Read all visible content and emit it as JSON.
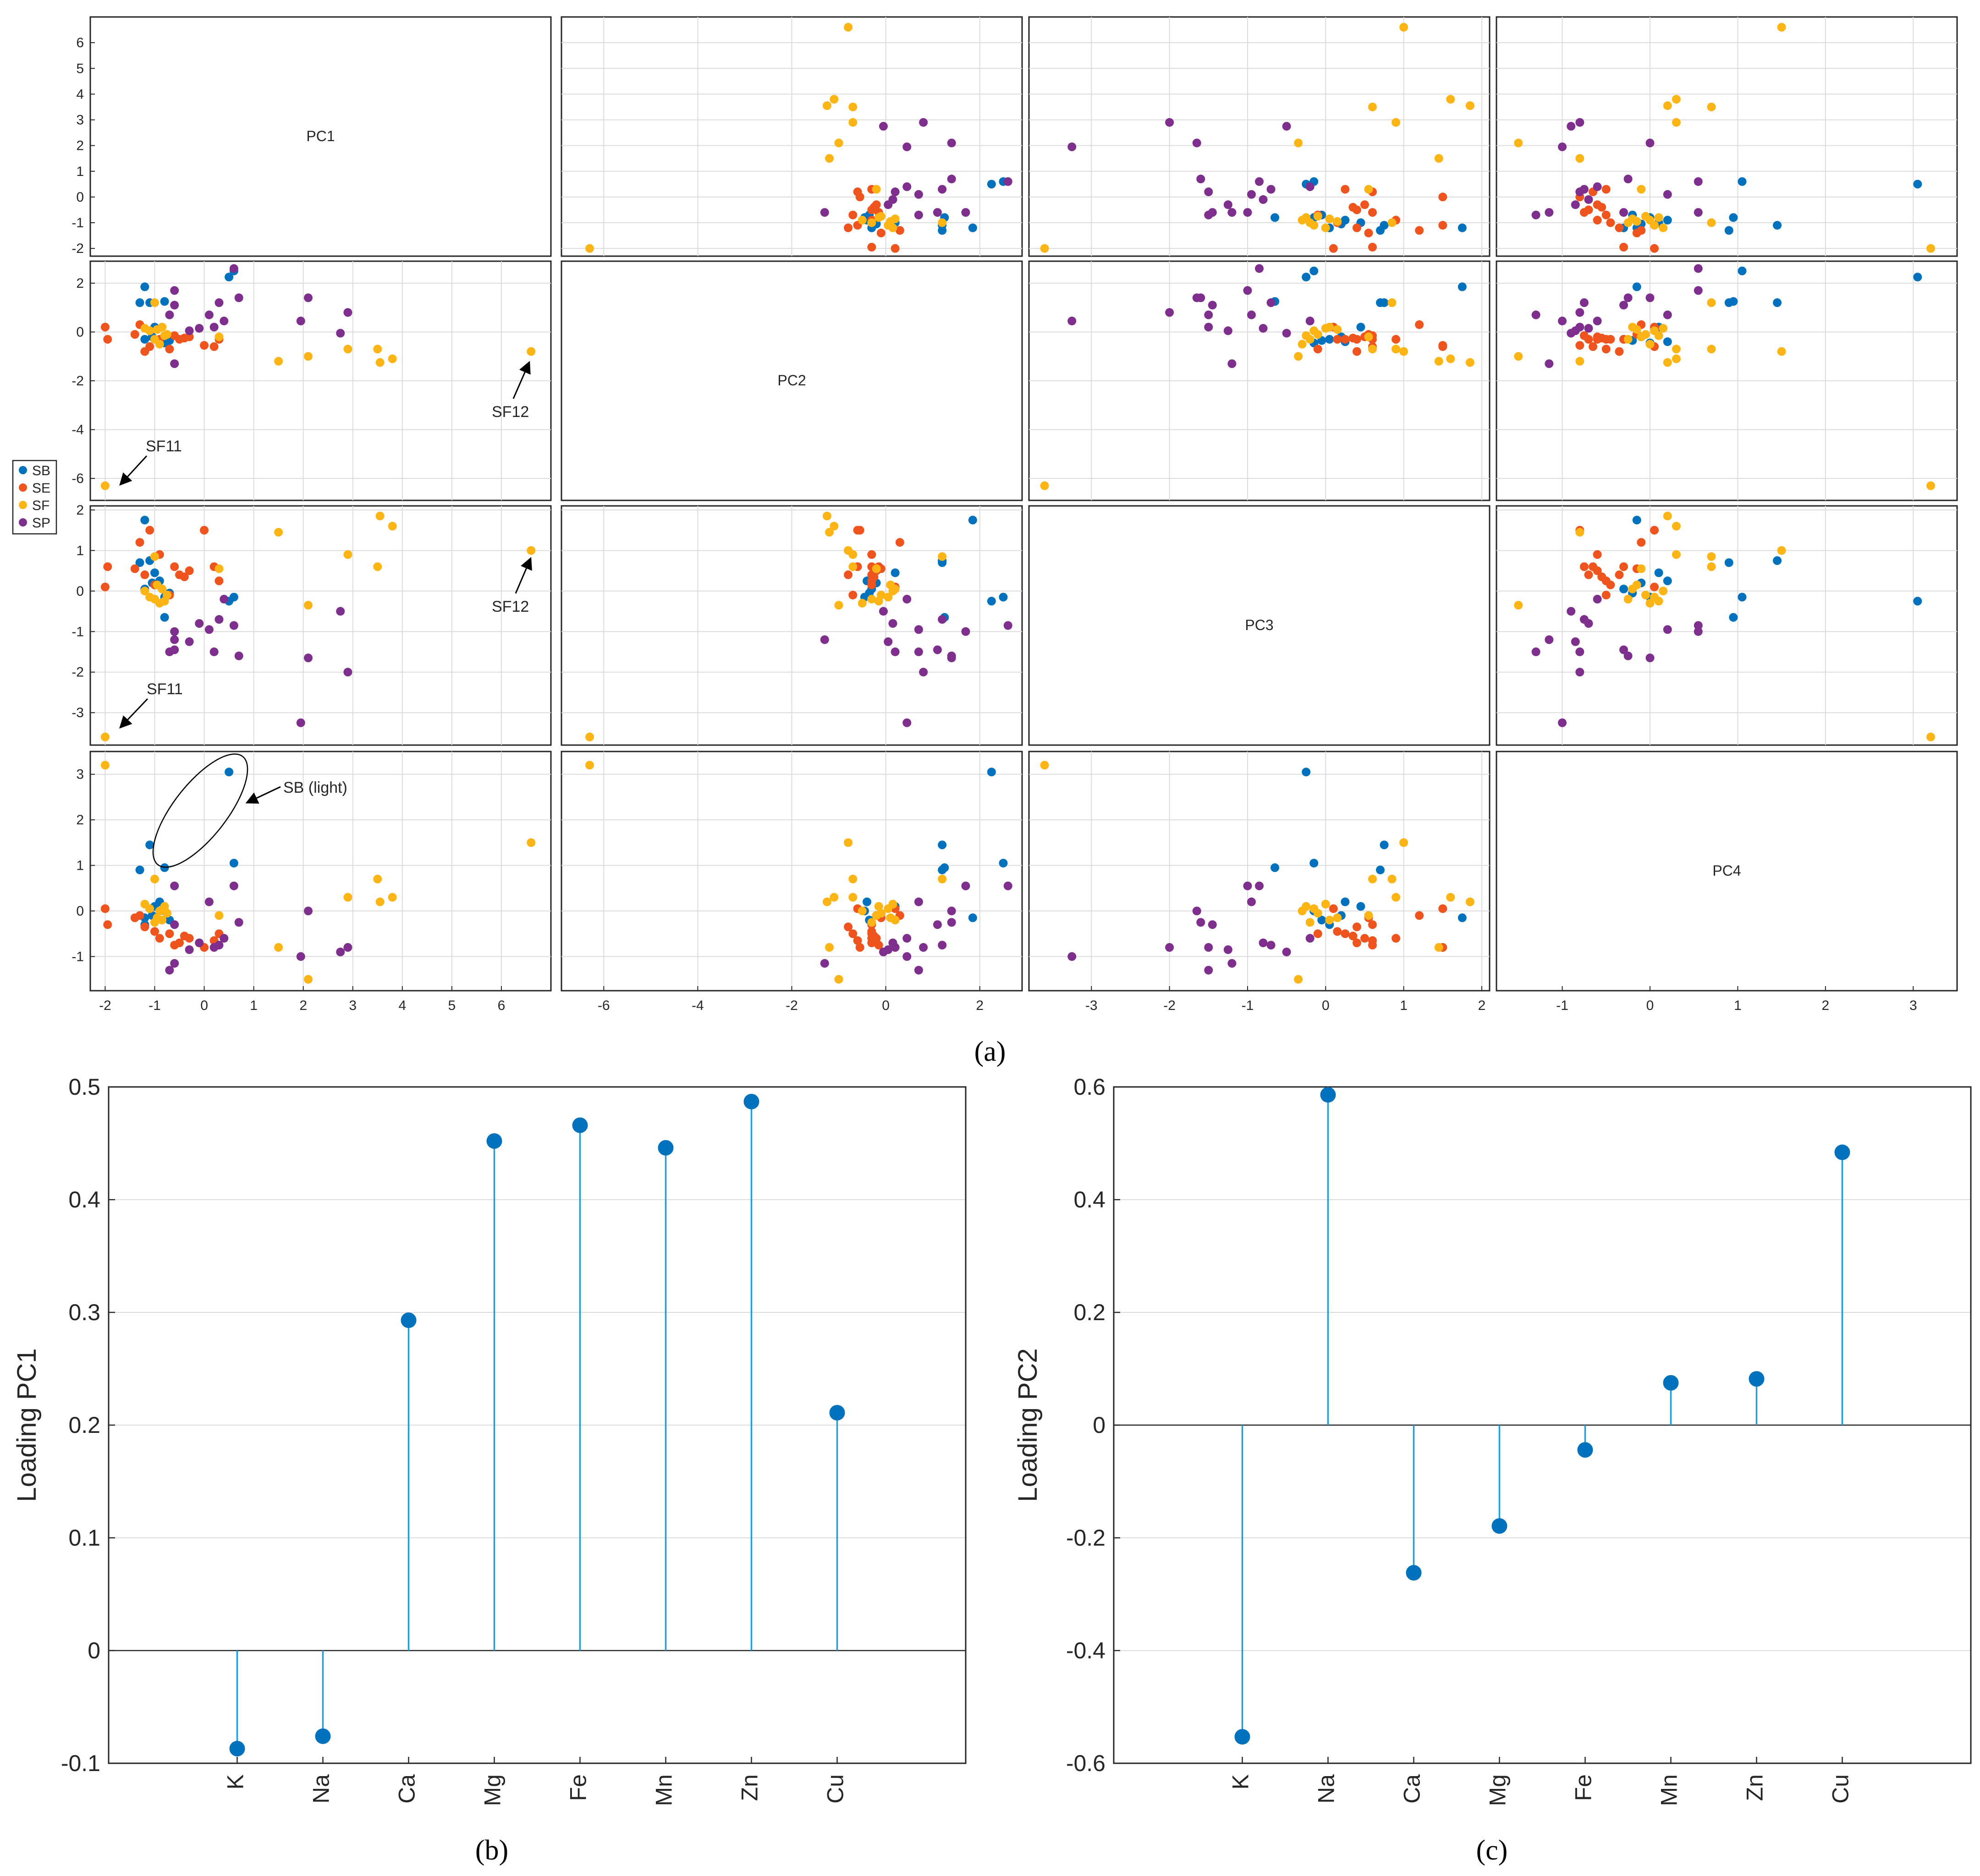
{
  "colors": {
    "SB": "#0072BD",
    "SE": "#F0541E",
    "SF": "#FDB515",
    "SP": "#7E2F8E",
    "stem": "#1F9ED8",
    "stem_marker": "#0072BD"
  },
  "legend": [
    {
      "key": "SB",
      "label": "SB"
    },
    {
      "key": "SE",
      "label": "SE"
    },
    {
      "key": "SF",
      "label": "SF"
    },
    {
      "key": "SP",
      "label": "SP"
    }
  ],
  "captions": {
    "a": "(a)",
    "b": "(b)",
    "c": "(c)"
  },
  "annotations": {
    "sf11": "SF11",
    "sf12": "SF12",
    "sb_light": "SB (light)"
  },
  "chart_data": [
    {
      "id": "scatter-matrix",
      "type": "scatter",
      "title": "",
      "variables": [
        "PC1",
        "PC2",
        "PC3",
        "PC4"
      ],
      "ranges": {
        "PC1": [
          -2.3,
          7.0
        ],
        "PC2": [
          -6.9,
          2.9
        ],
        "PC3": [
          -3.8,
          2.1
        ],
        "PC4": [
          -1.75,
          3.5
        ]
      },
      "ticks": {
        "PC1": [
          -2,
          -1,
          0,
          1,
          2,
          3,
          4,
          5,
          6
        ],
        "PC2": [
          -6,
          -4,
          -2,
          0,
          2
        ],
        "PC3": [
          -3,
          -2,
          -1,
          0,
          1,
          2
        ],
        "PC4": [
          -1,
          0,
          1,
          2,
          3
        ]
      },
      "points": [
        {
          "g": "SB",
          "v": [
            0.5,
            2.25,
            -0.25,
            3.05
          ]
        },
        {
          "g": "SB",
          "v": [
            0.6,
            2.5,
            -0.15,
            1.05
          ]
        },
        {
          "g": "SB",
          "v": [
            -1.2,
            1.85,
            1.75,
            -0.15
          ]
        },
        {
          "g": "SB",
          "v": [
            -1.1,
            1.2,
            0.75,
            1.45
          ]
        },
        {
          "g": "SB",
          "v": [
            -1.3,
            1.2,
            0.7,
            0.9
          ]
        },
        {
          "g": "SB",
          "v": [
            -0.8,
            1.25,
            -0.65,
            0.95
          ]
        },
        {
          "g": "SB",
          "v": [
            -1.0,
            0.2,
            0.45,
            0.1
          ]
        },
        {
          "g": "SB",
          "v": [
            -1.2,
            -0.3,
            0.05,
            -0.3
          ]
        },
        {
          "g": "SB",
          "v": [
            -0.9,
            -0.4,
            0.25,
            0.2
          ]
        },
        {
          "g": "SB",
          "v": [
            -0.8,
            -0.45,
            -0.15,
            0.0
          ]
        },
        {
          "g": "SB",
          "v": [
            -1.05,
            -0.2,
            0.2,
            -0.1
          ]
        },
        {
          "g": "SB",
          "v": [
            -0.7,
            -0.35,
            -0.05,
            -0.2
          ]
        },
        {
          "g": "SE",
          "v": [
            -1.95,
            -0.3,
            0.6,
            -0.3
          ]
        },
        {
          "g": "SE",
          "v": [
            -2.0,
            0.2,
            0.1,
            0.05
          ]
        },
        {
          "g": "SE",
          "v": [
            -1.3,
            0.3,
            1.2,
            -0.1
          ]
        },
        {
          "g": "SE",
          "v": [
            -1.1,
            -0.6,
            1.5,
            0.05
          ]
        },
        {
          "g": "SE",
          "v": [
            -0.9,
            -0.3,
            0.9,
            -0.6
          ]
        },
        {
          "g": "SE",
          "v": [
            -0.6,
            -0.15,
            0.6,
            -0.75
          ]
        },
        {
          "g": "SE",
          "v": [
            -0.5,
            -0.3,
            0.4,
            -0.7
          ]
        },
        {
          "g": "SE",
          "v": [
            -0.3,
            -0.2,
            0.5,
            -0.6
          ]
        },
        {
          "g": "SE",
          "v": [
            0.0,
            -0.55,
            1.5,
            -0.8
          ]
        },
        {
          "g": "SE",
          "v": [
            0.2,
            -0.6,
            0.6,
            -0.65
          ]
        },
        {
          "g": "SE",
          "v": [
            -0.7,
            -0.7,
            -0.1,
            -0.5
          ]
        },
        {
          "g": "SE",
          "v": [
            -1.2,
            -0.8,
            0.4,
            -0.35
          ]
        },
        {
          "g": "SE",
          "v": [
            -1.4,
            -0.1,
            0.55,
            -0.15
          ]
        },
        {
          "g": "SE",
          "v": [
            -1.0,
            -0.3,
            0.15,
            -0.45
          ]
        },
        {
          "g": "SE",
          "v": [
            -0.4,
            -0.25,
            0.35,
            -0.55
          ]
        },
        {
          "g": "SE",
          "v": [
            0.3,
            -0.3,
            0.25,
            -0.5
          ]
        },
        {
          "g": "SF",
          "v": [
            -2.0,
            -6.3,
            -3.6,
            3.2
          ]
        },
        {
          "g": "SF",
          "v": [
            6.6,
            -0.8,
            1.0,
            1.5
          ]
        },
        {
          "g": "SF",
          "v": [
            1.5,
            -1.2,
            1.45,
            -0.8
          ]
        },
        {
          "g": "SF",
          "v": [
            2.1,
            -1.0,
            -0.35,
            -1.5
          ]
        },
        {
          "g": "SF",
          "v": [
            2.9,
            -0.7,
            0.9,
            0.3
          ]
        },
        {
          "g": "SF",
          "v": [
            3.5,
            -0.7,
            0.6,
            0.7
          ]
        },
        {
          "g": "SF",
          "v": [
            3.55,
            -1.25,
            1.85,
            0.2
          ]
        },
        {
          "g": "SF",
          "v": [
            3.8,
            -1.1,
            1.6,
            0.3
          ]
        },
        {
          "g": "SF",
          "v": [
            -1.0,
            1.2,
            0.85,
            0.7
          ]
        },
        {
          "g": "SF",
          "v": [
            -0.85,
            0.2,
            0.05,
            -0.2
          ]
        },
        {
          "g": "SF",
          "v": [
            -1.1,
            0.05,
            -0.15,
            0.05
          ]
        },
        {
          "g": "SF",
          "v": [
            -0.75,
            -0.1,
            -0.1,
            -0.05
          ]
        },
        {
          "g": "SF",
          "v": [
            -1.0,
            -0.3,
            -0.2,
            -0.25
          ]
        },
        {
          "g": "SF",
          "v": [
            -0.9,
            -0.5,
            -0.3,
            0.0
          ]
        },
        {
          "g": "SF",
          "v": [
            0.3,
            -0.2,
            0.55,
            -0.1
          ]
        },
        {
          "g": "SF",
          "v": [
            -1.2,
            0.15,
            0.0,
            0.15
          ]
        },
        {
          "g": "SF",
          "v": [
            -0.8,
            -0.15,
            -0.25,
            0.1
          ]
        },
        {
          "g": "SF",
          "v": [
            -0.95,
            0.1,
            0.15,
            -0.15
          ]
        },
        {
          "g": "SP",
          "v": [
            0.6,
            2.6,
            -0.85,
            0.55
          ]
        },
        {
          "g": "SP",
          "v": [
            0.7,
            1.4,
            -1.6,
            -0.25
          ]
        },
        {
          "g": "SP",
          "v": [
            0.3,
            1.2,
            -0.7,
            -0.75
          ]
        },
        {
          "g": "SP",
          "v": [
            0.1,
            0.7,
            -0.95,
            0.2
          ]
        },
        {
          "g": "SP",
          "v": [
            -0.6,
            1.7,
            -1.0,
            0.55
          ]
        },
        {
          "g": "SP",
          "v": [
            -0.6,
            1.1,
            -1.45,
            -0.3
          ]
        },
        {
          "g": "SP",
          "v": [
            -0.7,
            0.7,
            -1.5,
            -1.3
          ]
        },
        {
          "g": "SP",
          "v": [
            -0.6,
            -1.3,
            -1.2,
            -1.15
          ]
        },
        {
          "g": "SP",
          "v": [
            0.2,
            0.2,
            -1.5,
            -0.8
          ]
        },
        {
          "g": "SP",
          "v": [
            0.4,
            0.45,
            -0.2,
            -0.6
          ]
        },
        {
          "g": "SP",
          "v": [
            -0.3,
            0.05,
            -1.25,
            -0.85
          ]
        },
        {
          "g": "SP",
          "v": [
            -0.1,
            0.15,
            -0.8,
            -0.7
          ]
        },
        {
          "g": "SP",
          "v": [
            2.1,
            1.4,
            -1.65,
            0.0
          ]
        },
        {
          "g": "SP",
          "v": [
            1.95,
            0.45,
            -3.25,
            -1.0
          ]
        },
        {
          "g": "SP",
          "v": [
            2.75,
            -0.05,
            -0.5,
            -0.9
          ]
        },
        {
          "g": "SP",
          "v": [
            2.9,
            0.8,
            -2.0,
            -0.8
          ]
        }
      ]
    },
    {
      "id": "stem-pc1",
      "type": "stem",
      "title": "",
      "xlabel": "",
      "ylabel": "Loading PC1",
      "categories": [
        "K",
        "Na",
        "Ca",
        "Mg",
        "Fe",
        "Mn",
        "Zn",
        "Cu"
      ],
      "values": [
        -0.087,
        -0.076,
        0.293,
        0.452,
        0.466,
        0.446,
        0.487,
        0.211
      ],
      "ylim": [
        -0.1,
        0.5
      ],
      "yticks": [
        "-0.1",
        "0",
        "0.1",
        "0.2",
        "0.3",
        "0.4",
        "0.5"
      ],
      "ytick_values": [
        -0.1,
        0,
        0.1,
        0.2,
        0.3,
        0.4,
        0.5
      ],
      "grid": "horizontal"
    },
    {
      "id": "stem-pc2",
      "type": "stem",
      "title": "",
      "xlabel": "",
      "ylabel": "Loading PC2",
      "categories": [
        "K",
        "Na",
        "Ca",
        "Mg",
        "Fe",
        "Mn",
        "Zn",
        "Cu"
      ],
      "values": [
        -0.553,
        0.586,
        -0.262,
        -0.179,
        -0.044,
        0.075,
        0.082,
        0.484
      ],
      "ylim": [
        -0.6,
        0.6
      ],
      "yticks": [
        "-0.6",
        "-0.4",
        "-0.2",
        "0",
        "0.2",
        "0.4",
        "0.6"
      ],
      "ytick_values": [
        -0.6,
        -0.4,
        -0.2,
        0,
        0.2,
        0.4,
        0.6
      ],
      "grid": "horizontal"
    }
  ]
}
